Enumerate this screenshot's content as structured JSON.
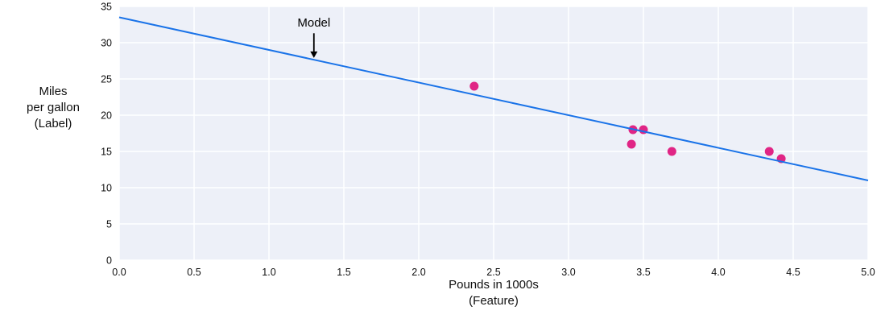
{
  "chart_data": {
    "type": "scatter",
    "title": "",
    "xlabel_lines": [
      "Pounds in 1000s",
      "(Feature)"
    ],
    "ylabel_lines": [
      "Miles",
      "per gallon",
      "(Label)"
    ],
    "xlim": [
      0.0,
      5.0
    ],
    "ylim": [
      0,
      35
    ],
    "xticks": [
      0.0,
      0.5,
      1.0,
      1.5,
      2.0,
      2.5,
      3.0,
      3.5,
      4.0,
      4.5,
      5.0
    ],
    "xtick_labels": [
      "0.0",
      "0.5",
      "1.0",
      "1.5",
      "2.0",
      "2.5",
      "3.0",
      "3.5",
      "4.0",
      "4.5",
      "5.0"
    ],
    "yticks": [
      0,
      5,
      10,
      15,
      20,
      25,
      30,
      35
    ],
    "ytick_labels": [
      "0",
      "5",
      "10",
      "15",
      "20",
      "25",
      "30",
      "35"
    ],
    "grid": true,
    "legend": "none",
    "plot_background": "#edf0f8",
    "grid_color": "#ffffff",
    "text_color": "#111111",
    "series": [
      {
        "name": "data-points",
        "kind": "scatter",
        "color": "#e02585",
        "points": [
          [
            2.37,
            24
          ],
          [
            3.43,
            18
          ],
          [
            3.5,
            18
          ],
          [
            3.42,
            16
          ],
          [
            3.69,
            15
          ],
          [
            4.34,
            15
          ],
          [
            4.42,
            14
          ]
        ]
      },
      {
        "name": "model-line",
        "kind": "line",
        "color": "#1a73e8",
        "points": [
          [
            0.0,
            33.5
          ],
          [
            5.0,
            11.0
          ]
        ]
      }
    ],
    "annotation": {
      "text": "Model",
      "color": "#000000",
      "text_x": 1.3,
      "text_y": 32.2,
      "arrow_x": 1.3,
      "arrow_from_y": 31.3,
      "arrow_to_y": 27.9
    }
  }
}
